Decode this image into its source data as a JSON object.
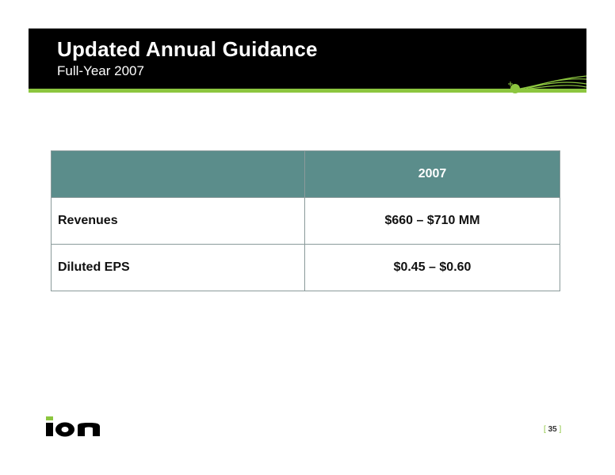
{
  "header": {
    "title": "Updated Annual Guidance",
    "subtitle": "Full-Year 2007"
  },
  "table": {
    "columns": [
      "",
      "2007"
    ],
    "rows": [
      {
        "label": "Revenues",
        "value": "$660 – $710 MM"
      },
      {
        "label": "Diluted EPS",
        "value": "$0.45 – $0.60"
      }
    ]
  },
  "footer": {
    "logo_text": "ion",
    "page_number": "35",
    "bracket_open": "[",
    "bracket_close": "]"
  },
  "colors": {
    "header_bg": "#000000",
    "accent_green": "#8cc63f",
    "table_header_bg": "#5b8d8b"
  }
}
